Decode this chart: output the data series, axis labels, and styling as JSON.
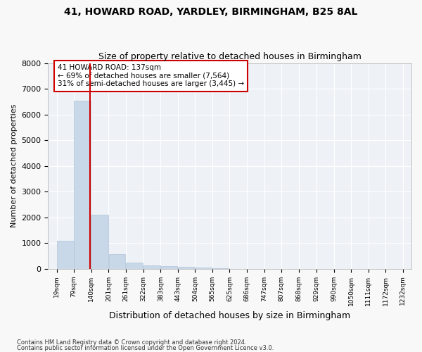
{
  "title1": "41, HOWARD ROAD, YARDLEY, BIRMINGHAM, B25 8AL",
  "title2": "Size of property relative to detached houses in Birmingham",
  "xlabel": "Distribution of detached houses by size in Birmingham",
  "ylabel": "Number of detached properties",
  "footer1": "Contains HM Land Registry data © Crown copyright and database right 2024.",
  "footer2": "Contains public sector information licensed under the Open Government Licence v3.0.",
  "annotation_title": "41 HOWARD ROAD: 137sqm",
  "annotation_line1": "← 69% of detached houses are smaller (7,564)",
  "annotation_line2": "31% of semi-detached houses are larger (3,445) →",
  "property_size": 137,
  "bar_color": "#c8d8e8",
  "bar_edge_color": "#b0c4d8",
  "line_color": "#cc0000",
  "annotation_box_color": "#cc0000",
  "background_color": "#eef2f7",
  "grid_color": "#ffffff",
  "bin_edges": [
    19,
    79,
    140,
    201,
    261,
    322,
    383,
    443,
    504,
    565,
    625,
    686,
    747,
    807,
    868,
    929,
    990,
    1050,
    1111,
    1172,
    1232
  ],
  "tick_labels": [
    "19sqm",
    "79sqm",
    "140sqm",
    "201sqm",
    "261sqm",
    "322sqm",
    "383sqm",
    "443sqm",
    "504sqm",
    "565sqm",
    "625sqm",
    "686sqm",
    "747sqm",
    "807sqm",
    "868sqm",
    "929sqm",
    "990sqm",
    "1050sqm",
    "1111sqm",
    "1172sqm",
    "1232sqm"
  ],
  "values": [
    1100,
    6550,
    2100,
    560,
    240,
    130,
    95,
    65,
    50,
    10,
    0,
    0,
    0,
    0,
    0,
    0,
    0,
    0,
    0,
    0
  ],
  "ylim": [
    0,
    8000
  ],
  "yticks": [
    0,
    1000,
    2000,
    3000,
    4000,
    5000,
    6000,
    7000,
    8000
  ]
}
